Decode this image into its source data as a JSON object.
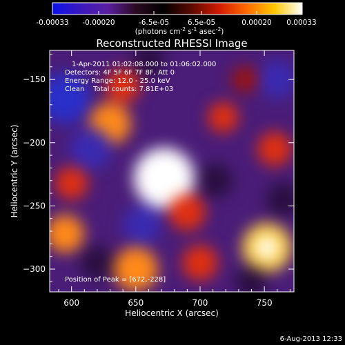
{
  "colorbar": {
    "tick_labels": [
      "-0.00033",
      "-0.00020",
      "-6.5e-05",
      "6.5e-05",
      "0.00020",
      "0.00033"
    ],
    "unit_label": "(photons cm",
    "unit_sup1": "-2",
    "unit_mid": " s",
    "unit_sup2": "-1",
    "unit_mid2": " asec",
    "unit_sup3": "-2",
    "unit_end": ")",
    "colormap": [
      "#0a12e8",
      "#3a18c0",
      "#5a1fa0",
      "#2a0a20",
      "#000000",
      "#5a0a00",
      "#d21a00",
      "#ff6a00",
      "#ffc800",
      "#ffffff"
    ]
  },
  "chart_data": {
    "type": "heatmap",
    "title": "Reconstructed RHESSI Image",
    "xlabel": "Heliocentric X (arcsec)",
    "ylabel": "Heliocentric Y (arcsec)",
    "xlim": [
      583,
      773
    ],
    "ylim": [
      -318,
      -127
    ],
    "x_ticks": [
      600,
      650,
      700,
      750
    ],
    "y_ticks": [
      -150,
      -200,
      -250,
      -300
    ],
    "grid": false,
    "annotations": [
      "1-Apr-2011 01:02:08.000 to 01:06:02.000",
      "Detectors: 4F 5F 6F 7F 8F, Att 0",
      "Energy Range: 12.0 - 25.0 keV",
      "Clean    Total counts: 7.81E+03"
    ],
    "peak_label": "Position of Peak = [672,-228]",
    "peak": {
      "x": 672,
      "y": -228
    },
    "sources": [
      {
        "x": 672,
        "y": -228,
        "value": 0.00033
      },
      {
        "x": 752,
        "y": -283,
        "value": 0.00024
      },
      {
        "x": 630,
        "y": -185,
        "value": 0.00018
      },
      {
        "x": 640,
        "y": -155,
        "value": 0.00012
      },
      {
        "x": 718,
        "y": -180,
        "value": 9e-05
      },
      {
        "x": 758,
        "y": -205,
        "value": 0.00012
      },
      {
        "x": 600,
        "y": -232,
        "value": 0.00011
      },
      {
        "x": 595,
        "y": -272,
        "value": 0.00015
      },
      {
        "x": 650,
        "y": -300,
        "value": 0.0002
      },
      {
        "x": 700,
        "y": -295,
        "value": 0.00013
      },
      {
        "x": 690,
        "y": -255,
        "value": 0.00014
      },
      {
        "x": 735,
        "y": -150,
        "value": 6e-05
      },
      {
        "x": 595,
        "y": -165,
        "value": -0.00025
      },
      {
        "x": 615,
        "y": -205,
        "value": -0.00018
      },
      {
        "x": 655,
        "y": -265,
        "value": -0.00016
      },
      {
        "x": 712,
        "y": -230,
        "value": -0.00012
      },
      {
        "x": 760,
        "y": -150,
        "value": -0.00015
      },
      {
        "x": 765,
        "y": -245,
        "value": -0.00012
      },
      {
        "x": 660,
        "y": -135,
        "value": -0.0001
      },
      {
        "x": 620,
        "y": -295,
        "value": -0.00012
      },
      {
        "x": 740,
        "y": -310,
        "value": -0.0001
      }
    ]
  },
  "footer": {
    "date": "6-Aug-2013 12:33"
  }
}
